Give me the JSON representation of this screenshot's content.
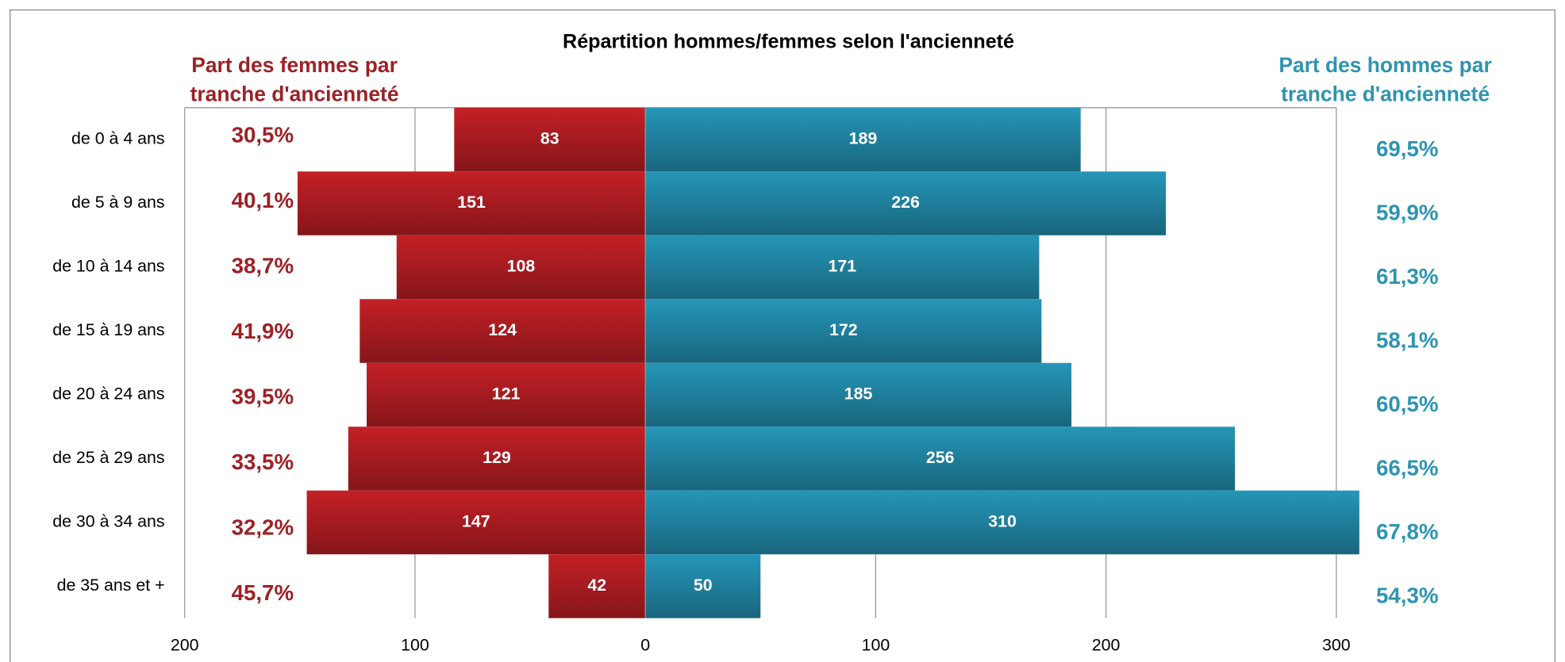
{
  "chart_data": {
    "type": "butterfly-bar",
    "title": "Répartition hommes/femmes selon l'ancienneté",
    "categories": [
      "de 0 à 4 ans",
      "de 5 à 9 ans",
      "de 10 à 14 ans",
      "de 15 à 19 ans",
      "de 20 à 24 ans",
      "de 25 à 29 ans",
      "de 30 à 34 ans",
      "de 35 ans et +"
    ],
    "series": [
      {
        "side": "left",
        "color": "#c42026",
        "values": [
          83,
          151,
          108,
          124,
          121,
          129,
          147,
          42
        ]
      },
      {
        "side": "right",
        "color": "#2596b8",
        "values": [
          189,
          226,
          171,
          172,
          185,
          256,
          310,
          50
        ]
      }
    ],
    "shares": [
      {
        "side": "left",
        "color": "#9b2226",
        "header": [
          "Part des femmes par",
          "tranche d'ancienneté"
        ],
        "values": [
          30.5,
          40.1,
          38.7,
          41.9,
          39.5,
          33.5,
          32.2,
          45.7
        ],
        "value_labels": [
          "30,5%",
          "40,1%",
          "38,7%",
          "41,9%",
          "39,5%",
          "33,5%",
          "32,2%",
          "45,7%"
        ]
      },
      {
        "side": "right",
        "color": "#2e94b0",
        "header": [
          "Part des hommes par",
          "tranche d'ancienneté"
        ],
        "values": [
          69.5,
          59.9,
          61.3,
          58.1,
          60.5,
          66.5,
          67.8,
          54.3
        ],
        "value_labels": [
          "69,5%",
          "59,9%",
          "61,3%",
          "58,1%",
          "60,5%",
          "66,5%",
          "67,8%",
          "54,3%"
        ]
      }
    ],
    "xlim": [
      -200,
      310
    ],
    "xticks": [
      {
        "value": -200,
        "label": "200"
      },
      {
        "value": -100,
        "label": "100"
      },
      0,
      100,
      200,
      300
    ],
    "grid": true
  }
}
